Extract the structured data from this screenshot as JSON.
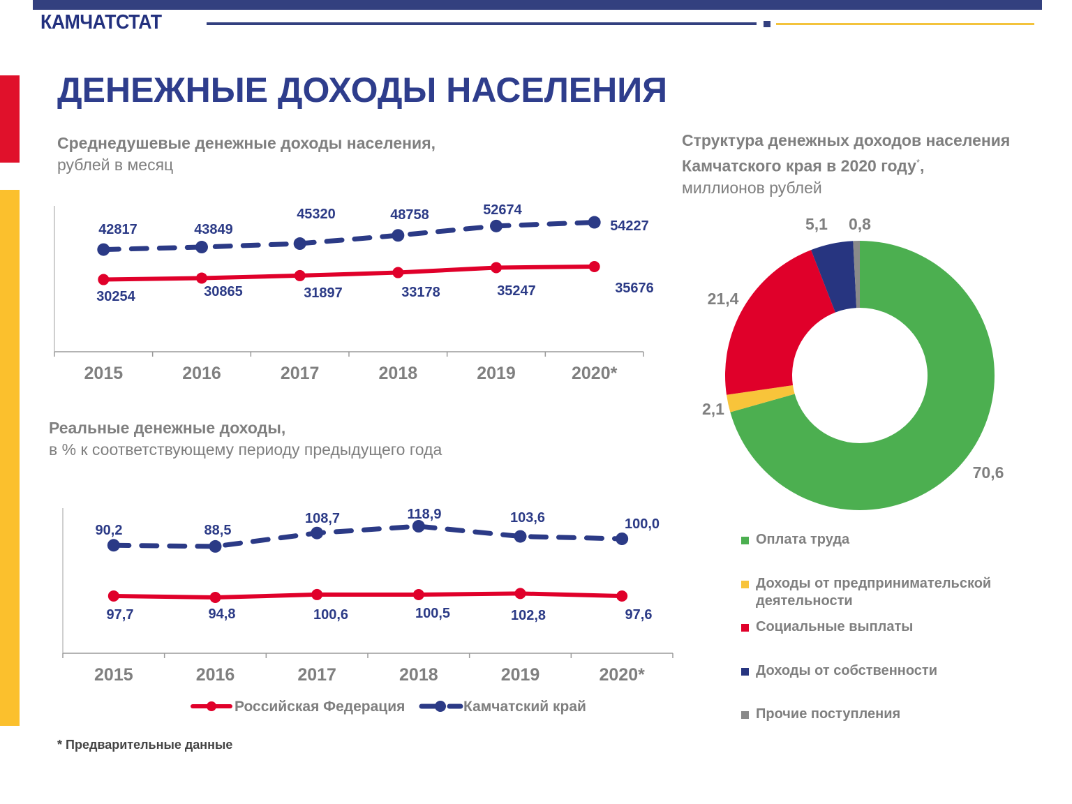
{
  "header": {
    "brand": "КАМЧАТСТАТ",
    "title": "ДЕНЕЖНЫЕ ДОХОДЫ НАСЕЛЕНИЯ"
  },
  "colors": {
    "navy": "#2b3a86",
    "red": "#e0002a",
    "green": "#4caf50",
    "yellow": "#f8c43a",
    "grey": "#8a8a8a",
    "axis_text": "#7f7f7f"
  },
  "chart_data": [
    {
      "type": "line",
      "title": "Среднедушевые денежные доходы населения,",
      "subtitle": "рублей в месяц",
      "categories": [
        "2015",
        "2016",
        "2017",
        "2018",
        "2019",
        "2020*"
      ],
      "series": [
        {
          "name": "Камчатский край",
          "style": "dashed",
          "color": "#2b3a86",
          "values": [
            42817,
            43849,
            45320,
            48758,
            52674,
            54227
          ],
          "labels": [
            "42817",
            "43849",
            "45320",
            "48758",
            "52674",
            "54227"
          ]
        },
        {
          "name": "Российская Федерация",
          "style": "solid",
          "color": "#e0002a",
          "values": [
            30254,
            30865,
            31897,
            33178,
            35247,
            35676
          ],
          "labels": [
            "30254",
            "30865",
            "31897",
            "33178",
            "35247",
            "35676"
          ]
        }
      ],
      "ylim": [
        0,
        61000
      ],
      "grid": false
    },
    {
      "type": "line",
      "title": "Реальные денежные доходы,",
      "subtitle": "в % к соответствующему периоду предыдущего года",
      "categories": [
        "2015",
        "2016",
        "2017",
        "2018",
        "2019",
        "2020*"
      ],
      "series": [
        {
          "name": "Камчатский край",
          "style": "dashed",
          "color": "#2b3a86",
          "values": [
            90.2,
            88.5,
            108.7,
            118.9,
            103.6,
            100.0
          ],
          "labels": [
            "90,2",
            "88,5",
            "108,7",
            "118,9",
            "103,6",
            "100,0"
          ]
        },
        {
          "name": "Российская Федерация",
          "style": "solid",
          "color": "#e0002a",
          "values": [
            97.7,
            94.8,
            100.6,
            100.5,
            102.8,
            97.6
          ],
          "labels": [
            "97,7",
            "94,8",
            "100,6",
            "100,5",
            "102,8",
            "97,6"
          ]
        }
      ],
      "legend": {
        "placement": "bottom",
        "items": [
          "Российская Федерация",
          "Камчатский край"
        ]
      },
      "grid": false
    },
    {
      "type": "pie",
      "donut": true,
      "title": "Структура денежных доходов населения",
      "title_line2": "Камчатского края в 2020 году",
      "title_mark": "*",
      "title_suffix": ",",
      "subtitle": "миллионов рублей",
      "slices": [
        {
          "name": "Оплата труда",
          "value": 70.6,
          "label": "70,6",
          "color": "#4caf50"
        },
        {
          "name": "Доходы от предпринимательской деятельности",
          "value": 2.1,
          "label": "2,1",
          "color": "#f8c43a"
        },
        {
          "name": "Социальные выплаты",
          "value": 21.4,
          "label": "21,4",
          "color": "#e0002a"
        },
        {
          "name": "Доходы от собственности",
          "value": 5.1,
          "label": "5,1",
          "color": "#273580"
        },
        {
          "name": "Прочие поступления",
          "value": 0.8,
          "label": "0,8",
          "color": "#8a8a8a"
        }
      ],
      "legend": {
        "placement": "bottom"
      }
    }
  ],
  "footnote": "* Предварительные данные"
}
